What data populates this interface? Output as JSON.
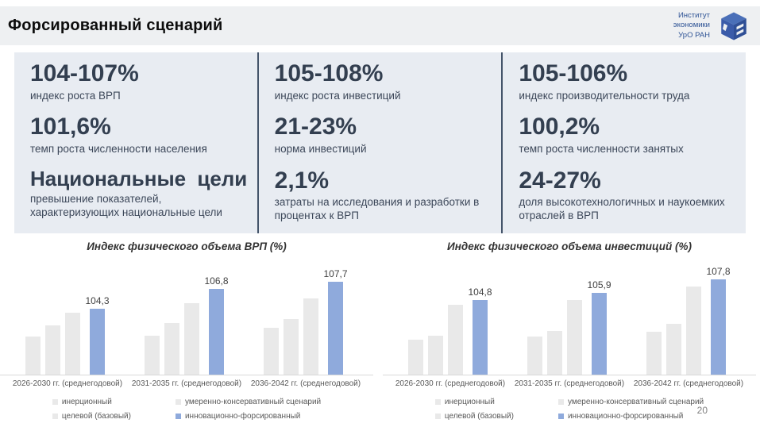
{
  "header": {
    "title": "Форсированный сценарий",
    "logo": {
      "lines": [
        "Институт",
        "экономики",
        "УрО РАН"
      ]
    }
  },
  "stats": {
    "columns": [
      {
        "items": [
          {
            "value": "104-107%",
            "label": "индекс роста ВРП"
          },
          {
            "value": "101,6%",
            "label": "темп роста численности населения"
          },
          {
            "value": "Национальные  цели",
            "label": "превышение показателей, характеризующих национальные цели"
          }
        ]
      },
      {
        "items": [
          {
            "value": "105-108%",
            "label": "индекс роста инвестиций"
          },
          {
            "value": "21-23%",
            "label": "норма инвестиций"
          },
          {
            "value": "2,1%",
            "label": "затраты на исследования и разработки в процентах к ВРП"
          }
        ]
      },
      {
        "items": [
          {
            "value": "105-106%",
            "label": "индекс производительности труда"
          },
          {
            "value": "100,2%",
            "label": "темп роста численности занятых"
          },
          {
            "value": "24-27%",
            "label": "доля высокотехнологичных и наукоемких отраслей в ВРП"
          }
        ]
      }
    ]
  },
  "chart_data": [
    {
      "type": "bar",
      "title": "Индекс физического объема ВРП (%)",
      "categories": [
        "2026-2030 гг. (среднегодовой)",
        "2031-2035 гг. (среднегодовой)",
        "2036-2042 гг. (среднегодовой)"
      ],
      "ylim": [
        96,
        109
      ],
      "grid": false,
      "legend_position": "bottom",
      "series": [
        {
          "name": "инерционный",
          "color": "#e9e9e9",
          "values": [
            100.8,
            100.9,
            101.9
          ]
        },
        {
          "name": "умеренно-консервативный сценарий",
          "color": "#e9e9e9",
          "values": [
            102.2,
            102.5,
            103.0
          ]
        },
        {
          "name": "целевой (базовый)",
          "color": "#e9e9e9",
          "values": [
            103.8,
            105.0,
            105.6
          ]
        },
        {
          "name": "инновационно-форсированный",
          "color": "#8faadc",
          "values": [
            104.3,
            106.8,
            107.7
          ],
          "labels": [
            "104,3",
            "106,8",
            "107,7"
          ]
        }
      ]
    },
    {
      "type": "bar",
      "title": "Индекс физического объема инвестиций (%)",
      "categories": [
        "2026-2030 гг. (среднегодовой)",
        "2031-2035 гг. (среднегодовой)",
        "2036-2042 гг. (среднегодовой)"
      ],
      "ylim": [
        94,
        109
      ],
      "grid": false,
      "legend_position": "bottom",
      "series": [
        {
          "name": "инерционный",
          "color": "#e9e9e9",
          "values": [
            99.1,
            99.5,
            100.2
          ]
        },
        {
          "name": "умеренно-консервативный сценарий",
          "color": "#e9e9e9",
          "values": [
            99.6,
            100.4,
            101.4
          ]
        },
        {
          "name": "целевой (базовый)",
          "color": "#e9e9e9",
          "values": [
            104.2,
            104.8,
            106.8
          ]
        },
        {
          "name": "инновационно-форсированный",
          "color": "#8faadc",
          "values": [
            104.8,
            105.9,
            107.8
          ],
          "labels": [
            "104,8",
            "105,9",
            "107,8"
          ]
        }
      ]
    }
  ],
  "page_number": "20",
  "colors": {
    "accent_blue": "#8faadc",
    "bar_gray": "#e9e9e9",
    "panel_bg": "#e8ecf2",
    "header_bg": "#eef0f2",
    "divider": "#44546a",
    "stat_text": "#333f50",
    "logo_blue": "#2e5395"
  }
}
